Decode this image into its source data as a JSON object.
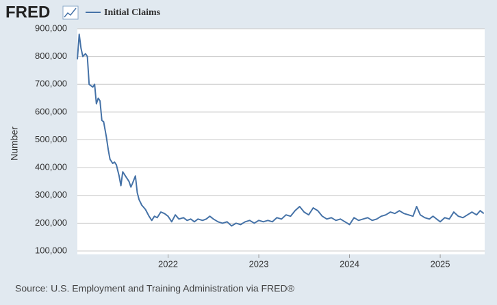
{
  "logo": "FRED",
  "chart_data": {
    "type": "line",
    "y_label": "Number",
    "source": "Source: U.S. Employment and Training Administration via FRED®",
    "xlim": [
      2021.0,
      2025.49
    ],
    "xticks": [
      2022,
      2023,
      2024,
      2025
    ],
    "ylim": [
      100000,
      900000
    ],
    "yticks": [
      {
        "value": 100000,
        "label": "100,000"
      },
      {
        "value": 200000,
        "label": "200,000"
      },
      {
        "value": 300000,
        "label": "300,000"
      },
      {
        "value": 400000,
        "label": "400,000"
      },
      {
        "value": 500000,
        "label": "500,000"
      },
      {
        "value": 600000,
        "label": "600,000"
      },
      {
        "value": 700000,
        "label": "700,000"
      },
      {
        "value": 800000,
        "label": "800,000"
      },
      {
        "value": 900000,
        "label": "900,000"
      }
    ],
    "grid": true,
    "x": [
      2021.0,
      2021.02,
      2021.04,
      2021.06,
      2021.09,
      2021.11,
      2021.13,
      2021.17,
      2021.19,
      2021.21,
      2021.23,
      2021.25,
      2021.27,
      2021.29,
      2021.32,
      2021.34,
      2021.36,
      2021.39,
      2021.41,
      2021.43,
      2021.46,
      2021.48,
      2021.5,
      2021.52,
      2021.55,
      2021.57,
      2021.59,
      2021.61,
      2021.64,
      2021.66,
      2021.68,
      2021.71,
      2021.75,
      2021.79,
      2021.82,
      2021.85,
      2021.88,
      2021.92,
      2021.96,
      2022.0,
      2022.04,
      2022.08,
      2022.12,
      2022.17,
      2022.21,
      2022.25,
      2022.29,
      2022.33,
      2022.38,
      2022.42,
      2022.46,
      2022.5,
      2022.55,
      2022.6,
      2022.65,
      2022.7,
      2022.75,
      2022.8,
      2022.85,
      2022.9,
      2022.95,
      2023.0,
      2023.05,
      2023.1,
      2023.15,
      2023.2,
      2023.25,
      2023.3,
      2023.35,
      2023.4,
      2023.45,
      2023.5,
      2023.55,
      2023.6,
      2023.65,
      2023.7,
      2023.75,
      2023.8,
      2023.85,
      2023.9,
      2023.95,
      2024.0,
      2024.05,
      2024.1,
      2024.15,
      2024.2,
      2024.25,
      2024.3,
      2024.35,
      2024.4,
      2024.45,
      2024.5,
      2024.55,
      2024.6,
      2024.65,
      2024.7,
      2024.74,
      2024.78,
      2024.83,
      2024.88,
      2024.92,
      2024.96,
      2025.0,
      2025.05,
      2025.1,
      2025.15,
      2025.2,
      2025.25,
      2025.3,
      2025.35,
      2025.4,
      2025.44,
      2025.48
    ],
    "series": [
      {
        "name": "Initial Claims",
        "color": "#4572a7",
        "values": [
          790000,
          880000,
          830000,
          800000,
          810000,
          800000,
          700000,
          690000,
          700000,
          630000,
          650000,
          640000,
          570000,
          565000,
          510000,
          465000,
          430000,
          415000,
          420000,
          410000,
          370000,
          335000,
          385000,
          375000,
          360000,
          350000,
          330000,
          345000,
          370000,
          310000,
          285000,
          265000,
          250000,
          225000,
          210000,
          225000,
          220000,
          240000,
          235000,
          225000,
          205000,
          230000,
          215000,
          220000,
          210000,
          215000,
          205000,
          215000,
          210000,
          215000,
          225000,
          215000,
          205000,
          200000,
          205000,
          190000,
          200000,
          195000,
          205000,
          210000,
          200000,
          210000,
          205000,
          210000,
          205000,
          220000,
          215000,
          230000,
          225000,
          245000,
          260000,
          240000,
          230000,
          255000,
          245000,
          225000,
          215000,
          220000,
          210000,
          215000,
          205000,
          195000,
          220000,
          210000,
          215000,
          220000,
          210000,
          215000,
          225000,
          230000,
          240000,
          235000,
          245000,
          235000,
          230000,
          225000,
          260000,
          230000,
          220000,
          215000,
          225000,
          215000,
          205000,
          220000,
          215000,
          240000,
          225000,
          220000,
          230000,
          240000,
          230000,
          245000,
          235000
        ]
      }
    ]
  }
}
